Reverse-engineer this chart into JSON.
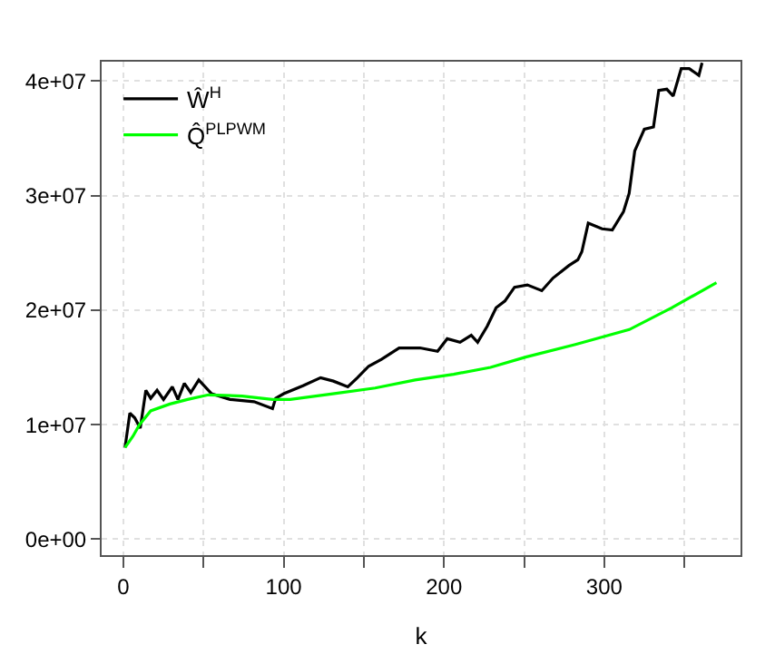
{
  "chart_data": {
    "type": "line",
    "xlabel": "k",
    "xlim": [
      -13.6,
      385
    ],
    "xticks": [
      0,
      {
        "value": 50,
        "label": null
      },
      100,
      {
        "value": 150,
        "label": null
      },
      200,
      {
        "value": 250,
        "label": null
      },
      300,
      {
        "value": 350,
        "label": null
      }
    ],
    "ylim": [
      -1400000,
      41700000
    ],
    "yticks": [
      {
        "value": 0,
        "label": "0e+00"
      },
      {
        "value": 10000000,
        "label": "1e+07"
      },
      {
        "value": 20000000,
        "label": "2e+07"
      },
      {
        "value": 30000000,
        "label": "3e+07"
      },
      {
        "value": 40000000,
        "label": "4e+07"
      }
    ],
    "grid": true,
    "legend": "top left",
    "marker": "none",
    "line_style": "solid",
    "series": [
      {
        "name": "Ŵ$^{H}$",
        "color": "#000000",
        "x": [
          1,
          4,
          7,
          10.5,
          14,
          17,
          21,
          25,
          30.5,
          34,
          38,
          42,
          47,
          55,
          66.5,
          81.5,
          93,
          95,
          100,
          112,
          123,
          131,
          140,
          146,
          153,
          161,
          172,
          185,
          196,
          202,
          210,
          217,
          221,
          227,
          232.5,
          238,
          244,
          252,
          261,
          268,
          278,
          283.5,
          286,
          290,
          298.6,
          305,
          312,
          315.5,
          319,
          325,
          330.7,
          334,
          339,
          343,
          348,
          353,
          359,
          361
        ],
        "values": [
          8000000,
          11000000,
          10600000,
          9700000,
          13000000,
          12300000,
          13000000,
          12200000,
          13300000,
          12200000,
          13600000,
          12800000,
          13900000,
          12700000,
          12200000,
          12000000,
          11400000,
          12300000,
          12700000,
          13400000,
          14100000,
          13800000,
          13300000,
          14100000,
          15100000,
          15700000,
          16700000,
          16700000,
          16400000,
          17500000,
          17200000,
          17800000,
          17200000,
          18600000,
          20200000,
          20800000,
          22000000,
          22200000,
          21700000,
          22800000,
          23900000,
          24400000,
          25100000,
          27600000,
          27100000,
          27000000,
          28600000,
          30200000,
          33900000,
          35800000,
          36000000,
          39200000,
          39300000,
          38700000,
          41100000,
          41100000,
          40500000,
          41600000
        ]
      },
      {
        "name": "Q̂$^{PLPWM}$",
        "color": "#00ff00",
        "x": [
          1,
          6,
          10,
          17,
          29,
          40,
          53,
          74,
          93,
          104,
          130.6,
          157,
          182,
          206,
          229,
          251,
          282,
          315.6,
          342,
          370
        ],
        "values": [
          8000000,
          9000000,
          10000000,
          11200000,
          11800000,
          12200000,
          12600000,
          12500000,
          12200000,
          12200000,
          12700000,
          13200000,
          13900000,
          14400000,
          15000000,
          15900000,
          17000000,
          18300000,
          20200000,
          22400000
        ]
      }
    ]
  }
}
